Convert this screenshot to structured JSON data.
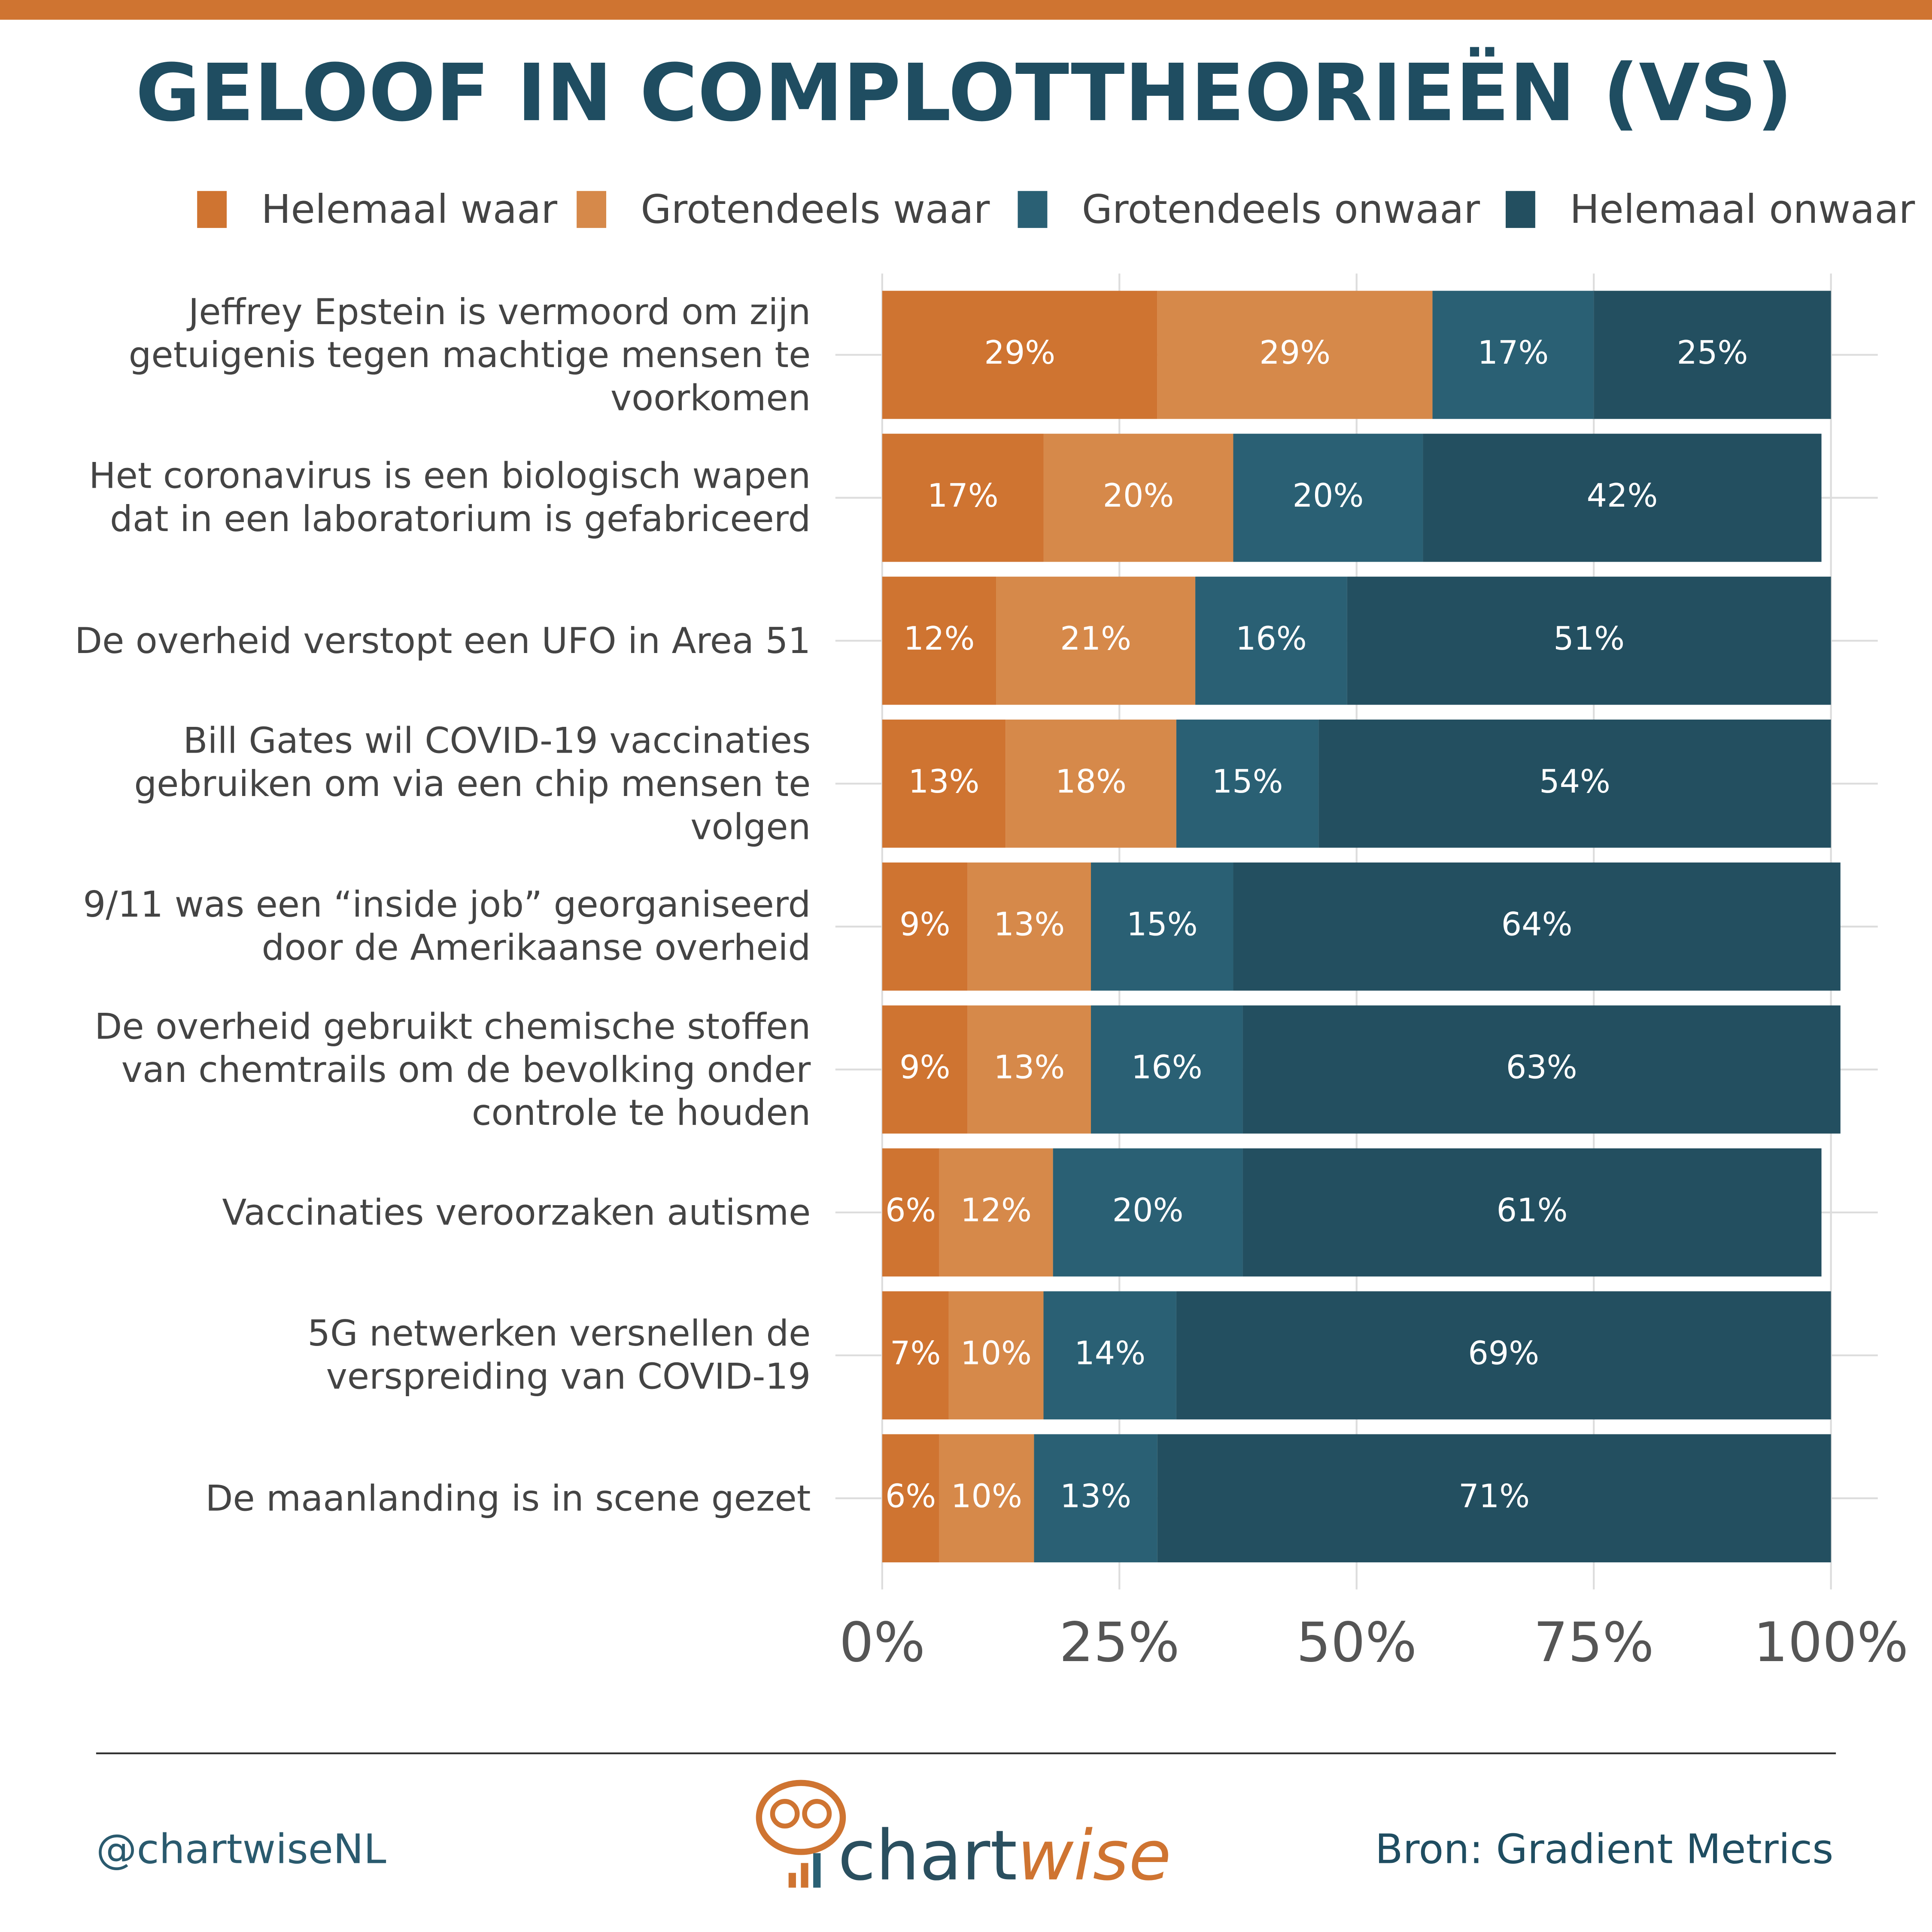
{
  "chart_data": {
    "type": "stacked-bar-horizontal",
    "title": "GELOOF IN COMPLOTTHEORIEËN (VS)",
    "categories": [
      "Jeffrey Epstein is vermoord om zijn getuigenis tegen machtige mensen te voorkomen",
      "Het coronavirus is een biologisch wapen dat in een laboratorium is gefabriceerd",
      "De overheid verstopt een UFO in Area 51",
      "Bill Gates wil COVID-19 vaccinaties gebruiken om via een chip mensen te volgen",
      "9/11 was een “inside job” georganiseerd door de Amerikaanse overheid",
      "De overheid gebruikt chemische stoffen van chemtrails om de bevolking onder controle te houden",
      "Vaccinaties veroorzaken autisme",
      "5G netwerken versnellen de verspreiding van COVID-19",
      "De maanlanding is in scene gezet"
    ],
    "series": [
      {
        "name": "Helemaal waar",
        "color": "#cf7431",
        "values": [
          29,
          17,
          12,
          13,
          9,
          9,
          6,
          7,
          6
        ],
        "value_labels": [
          "29%",
          "17%",
          "12%",
          "13%",
          "9%",
          "9%",
          "6%",
          "7%",
          "6%"
        ]
      },
      {
        "name": "Grotendeels waar",
        "color": "#d6894a",
        "values": [
          29,
          20,
          21,
          18,
          13,
          13,
          12,
          10,
          10
        ],
        "value_labels": [
          "29%",
          "20%",
          "21%",
          "18%",
          "13%",
          "13%",
          "12%",
          "10%",
          "10%"
        ]
      },
      {
        "name": "Grotendeels onwaar",
        "color": "#2a6074",
        "values": [
          17,
          20,
          16,
          15,
          15,
          16,
          20,
          14,
          13
        ],
        "value_labels": [
          "17%",
          "20%",
          "16%",
          "15%",
          "15%",
          "16%",
          "20%",
          "14%",
          "13%"
        ]
      },
      {
        "name": "Helemaal onwaar",
        "color": "#234f60",
        "values": [
          25,
          42,
          51,
          54,
          64,
          63,
          61,
          69,
          71
        ],
        "value_labels": [
          "25%",
          "42%",
          "51%",
          "54%",
          "64%",
          "63%",
          "61%",
          "69%",
          "71%"
        ]
      }
    ],
    "xlim": [
      0,
      100
    ],
    "xticks": [
      {
        "value": 0,
        "label": "0%"
      },
      {
        "value": 25,
        "label": "25%"
      },
      {
        "value": 50,
        "label": "50%"
      },
      {
        "value": 75,
        "label": "75%"
      },
      {
        "value": 100,
        "label": "100%"
      }
    ],
    "grid": true,
    "legend": "top"
  },
  "footer": {
    "credit": "@chartwiseNL",
    "logo_left": "chart",
    "logo_right": "wise",
    "source": "Bron: Gradient Metrics"
  }
}
